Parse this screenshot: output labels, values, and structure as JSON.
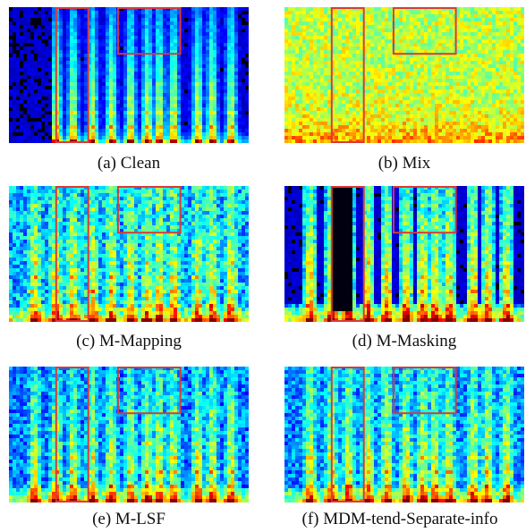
{
  "figure": {
    "panels": [
      {
        "id": "clean",
        "caption": "(a) Clean",
        "style": "clean"
      },
      {
        "id": "mix",
        "caption": "(b) Mix",
        "style": "mix"
      },
      {
        "id": "mapping",
        "caption": "(c) M-Mapping",
        "style": "mapping"
      },
      {
        "id": "masking",
        "caption": "(d) M-Masking",
        "style": "masking"
      },
      {
        "id": "lsf",
        "caption": "(e) M-LSF",
        "style": "lsf"
      },
      {
        "id": "mdm",
        "caption": "(f) MDM-tend-Separate-info",
        "style": "mdm"
      }
    ],
    "highlight_color": "#d83a3a"
  }
}
